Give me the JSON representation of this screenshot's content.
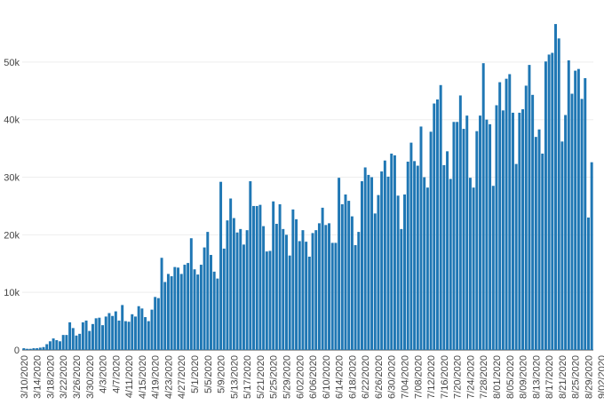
{
  "chart_data": {
    "type": "bar",
    "start_date": "3/10/2020",
    "end_date": "9/02/2020",
    "bar_color": "#1f77b4",
    "grid": true,
    "xlabel": "",
    "ylabel": "",
    "ylim": [
      0,
      58000
    ],
    "y_ticks": [
      {
        "value": 0,
        "label": "0"
      },
      {
        "value": 10000,
        "label": "10k"
      },
      {
        "value": 20000,
        "label": "20k"
      },
      {
        "value": 30000,
        "label": "30k"
      },
      {
        "value": 40000,
        "label": "40k"
      },
      {
        "value": 50000,
        "label": "50k"
      }
    ],
    "x_tick_labels": [
      "3/10/2020",
      "3/14/2020",
      "3/18/2020",
      "3/22/2020",
      "3/26/2020",
      "3/30/2020",
      "4/3/2020",
      "4/7/2020",
      "4/11/2020",
      "4/15/2020",
      "4/19/2020",
      "4/23/2020",
      "4/27/2020",
      "5/1/2020",
      "5/5/2020",
      "5/9/2020",
      "5/13/2020",
      "5/17/2020",
      "5/21/2020",
      "5/25/2020",
      "5/29/2020",
      "6/02/2020",
      "6/06/2020",
      "6/10/2020",
      "6/14/2020",
      "6/18/2020",
      "6/22/2020",
      "6/26/2020",
      "6/30/2020",
      "7/04/2020",
      "7/08/2020",
      "7/12/2020",
      "7/16/2020",
      "7/20/2020",
      "7/24/2020",
      "7/28/2020",
      "8/01/2020",
      "8/05/2020",
      "8/09/2020",
      "8/13/2020",
      "8/17/2020",
      "8/21/2020",
      "8/25/2020",
      "8/29/2020",
      "9/02/2020"
    ],
    "values": [
      300,
      200,
      200,
      300,
      300,
      400,
      500,
      1000,
      1500,
      2000,
      1700,
      1500,
      2600,
      2600,
      4800,
      3800,
      2500,
      2800,
      4800,
      5100,
      3300,
      4500,
      5500,
      5600,
      4300,
      5800,
      6400,
      5900,
      6700,
      5100,
      7800,
      5000,
      4900,
      6200,
      5800,
      7600,
      7200,
      5700,
      5000,
      7000,
      9200,
      9000,
      16000,
      11800,
      13200,
      12800,
      14400,
      14300,
      13200,
      14800,
      15100,
      19400,
      14000,
      13100,
      14800,
      17800,
      20500,
      16500,
      13600,
      12400,
      29200,
      17600,
      22500,
      26300,
      22900,
      20400,
      21000,
      18300,
      20800,
      29300,
      25000,
      25000,
      25200,
      21500,
      17100,
      17200,
      25800,
      21900,
      25300,
      21000,
      20000,
      16400,
      24400,
      22700,
      18900,
      20800,
      18800,
      16200,
      20300,
      20800,
      22000,
      24700,
      21700,
      22000,
      18600,
      18600,
      29900,
      25300,
      27000,
      25900,
      23200,
      18200,
      20500,
      29300,
      31700,
      30400,
      30000,
      23700,
      26900,
      31000,
      32900,
      30100,
      34100,
      33800,
      26800,
      21000,
      27000,
      32700,
      36000,
      32800,
      32000,
      38800,
      30000,
      28200,
      37900,
      42800,
      43500,
      46000,
      32100,
      34500,
      29700,
      39600,
      39600,
      44200,
      38400,
      40700,
      29900,
      28200,
      38000,
      40700,
      49800,
      40000,
      39200,
      28500,
      42500,
      46500,
      41600,
      47100,
      47900,
      41200,
      32300,
      41200,
      41800,
      45900,
      49500,
      44300,
      37000,
      38300,
      34100,
      50100,
      51300,
      51600,
      56600,
      54100,
      36200,
      40800,
      50300,
      44500,
      48500,
      48800,
      43600,
      47200,
      23000,
      32600
    ]
  }
}
